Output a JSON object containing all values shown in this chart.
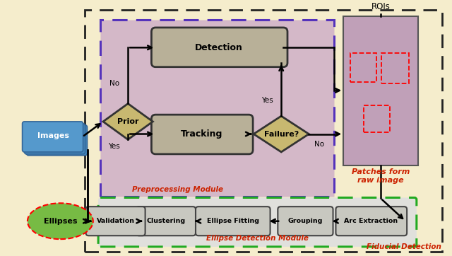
{
  "fig_width": 6.4,
  "fig_height": 3.62,
  "dpi": 100,
  "bg_color": "#f5edcc",
  "preproc_box_color": "#d4b8c8",
  "preproc_box_edge": "#5533bb",
  "preproc_label": "Preprocessing Module",
  "preproc_label_color": "#cc2200",
  "ellipse_det_box_color": "#e0e0dc",
  "ellipse_det_box_edge": "#22aa22",
  "ellipse_label": "Ellipse Detection Module",
  "ellipse_label_color": "#cc2200",
  "fiducial_label": "Fiducial Detection",
  "fiducial_label_color": "#cc2200",
  "rois_label": "ROIs",
  "patches_label": "Patches form\nraw image",
  "patches_label_color": "#cc2200",
  "detect_box_color": "#b8b098",
  "track_box_color": "#b8b098",
  "pipe_box_color": "#c8c8c0",
  "diamond_color": "#c8b870",
  "roi_image_color": "#c0a0b8",
  "images_color": "#5588bb",
  "ellipses_color": "#77bb44"
}
